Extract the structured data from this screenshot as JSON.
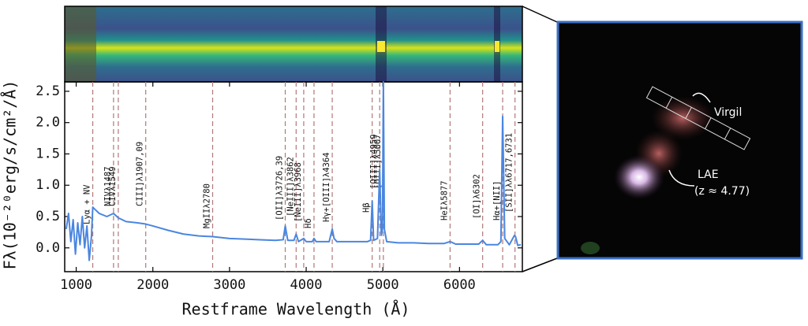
{
  "chart_data": {
    "type": "line",
    "x_label": "Restframe Wavelength (Å)",
    "y_label": "Fλ(10⁻²⁰erg/s/cm²/Å)",
    "xlim": [
      850,
      6820
    ],
    "ylim": [
      -0.38,
      2.65
    ],
    "xticks": [
      1000,
      2000,
      3000,
      4000,
      5000,
      6000
    ],
    "yticks": [
      {
        "value": 0,
        "label": "0.0"
      },
      0.5,
      {
        "value": 1,
        "label": "1.0"
      },
      1.5,
      {
        "value": 2,
        "label": "2.0"
      },
      2.5
    ],
    "x": [
      870,
      900,
      930,
      960,
      990,
      1020,
      1050,
      1080,
      1110,
      1140,
      1170,
      1200,
      1216,
      1240,
      1300,
      1400,
      1487,
      1549,
      1650,
      1800,
      1907,
      2000,
      2200,
      2400,
      2600,
      2780,
      3000,
      3200,
      3400,
      3600,
      3700,
      3727,
      3760,
      3840,
      3869,
      3900,
      3968,
      4000,
      4080,
      4102,
      4130,
      4300,
      4340,
      4364,
      4400,
      4600,
      4800,
      4840,
      4861,
      4880,
      4930,
      4959,
      4980,
      4995,
      5007,
      5020,
      5050,
      5200,
      5400,
      5600,
      5800,
      5877,
      5950,
      6100,
      6250,
      6302,
      6350,
      6500,
      6540,
      6563,
      6590,
      6650,
      6717,
      6731,
      6760,
      6800
    ],
    "series": [
      {
        "color": "#4a86e0",
        "values": [
          0.3,
          0.55,
          0.1,
          0.45,
          -0.1,
          0.4,
          0.05,
          0.5,
          0.0,
          0.35,
          -0.2,
          0.2,
          0.65,
          0.62,
          0.55,
          0.5,
          0.55,
          0.48,
          0.42,
          0.4,
          0.38,
          0.35,
          0.28,
          0.22,
          0.19,
          0.18,
          0.15,
          0.14,
          0.13,
          0.12,
          0.13,
          0.35,
          0.12,
          0.12,
          0.22,
          0.1,
          0.15,
          0.1,
          0.1,
          0.15,
          0.1,
          0.1,
          0.3,
          0.15,
          0.1,
          0.1,
          0.1,
          0.12,
          0.75,
          0.12,
          0.15,
          1.25,
          0.2,
          0.3,
          2.65,
          0.3,
          0.1,
          0.08,
          0.08,
          0.07,
          0.07,
          0.1,
          0.06,
          0.06,
          0.06,
          0.12,
          0.05,
          0.05,
          0.1,
          2.1,
          0.15,
          0.05,
          0.2,
          0.18,
          0.04,
          0.05
        ]
      }
    ],
    "line_color": "#b07878",
    "annotations": [
      {
        "label": "Lyα + NV",
        "x": 1216
      },
      {
        "label": "NIVλ1487",
        "x": 1487
      },
      {
        "label": "CIVλ1549",
        "x": 1549
      },
      {
        "label": "CIII]λ1907,09",
        "x": 1907
      },
      {
        "label": "MgIIλ2780",
        "x": 2780
      },
      {
        "label": "[OII]λ3726,39",
        "x": 3727
      },
      {
        "label": "[NeIII]λ3862",
        "x": 3869
      },
      {
        "label": "[NeIII]λ3968",
        "x": 3968
      },
      {
        "label": "Hδ",
        "x": 4102
      },
      {
        "label": "Hγ+[OIII]λ4364",
        "x": 4340
      },
      {
        "label": "Hβ",
        "x": 4861
      },
      {
        "label": "[OIII]λ4959",
        "x": 4959
      },
      {
        "label": "[OIII]λ5007",
        "x": 5007
      },
      {
        "label": "HeIλ5877",
        "x": 5877
      },
      {
        "label": "[OI]λ6302",
        "x": 6302
      },
      {
        "label": "Hα+[NII]",
        "x": 6563
      },
      {
        "label": "[SII]λλ6717,6731",
        "x": 6724
      }
    ]
  },
  "image_panel": {
    "labels": [
      "Virgil",
      "LAE",
      "(z ≈ 4.77)"
    ]
  }
}
